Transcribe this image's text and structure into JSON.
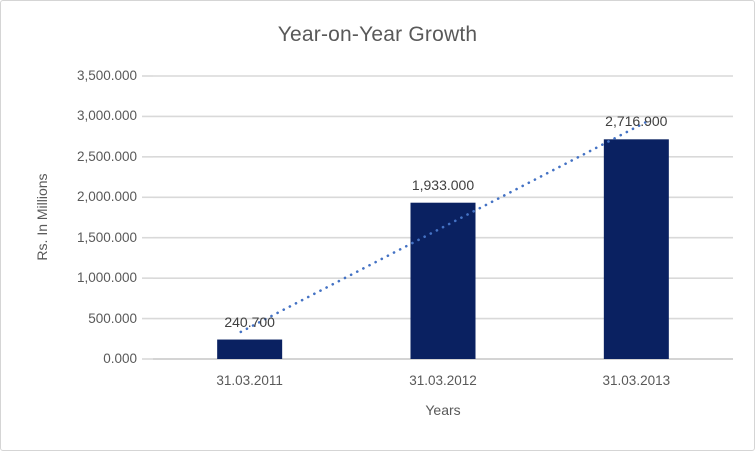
{
  "chart_data": {
    "type": "bar",
    "title": "Year-on-Year Growth",
    "xlabel": "Years",
    "ylabel": "Rs. In Millions",
    "categories": [
      "31.03.2011",
      "31.03.2012",
      "31.03.2013"
    ],
    "values": [
      240.7,
      1933.0,
      2716.9
    ],
    "data_labels": [
      "240.700",
      "1,933.000",
      "2,716.900"
    ],
    "y_tick_labels": [
      "0.000",
      "500.000",
      "1,000.000",
      "1,500.000",
      "2,000.000",
      "2,500.000",
      "3,000.000",
      "3,500.000"
    ],
    "ylim": [
      0,
      3500
    ],
    "y_tick_step": 500,
    "grid": "horizontal-major",
    "legend": "none",
    "trendline": {
      "type": "linear",
      "style": "dotted"
    },
    "colors": {
      "bar": "#0A2161",
      "trendline": "#4472C4",
      "gridline": "#D9D9D9",
      "axis_line": "#C6C6C6",
      "tick_text": "#595959",
      "title_text": "#595959",
      "axis_title_text": "#595959",
      "data_label_text": "#404040",
      "border": "#D5D5D5",
      "background": "#FFFFFF"
    }
  }
}
